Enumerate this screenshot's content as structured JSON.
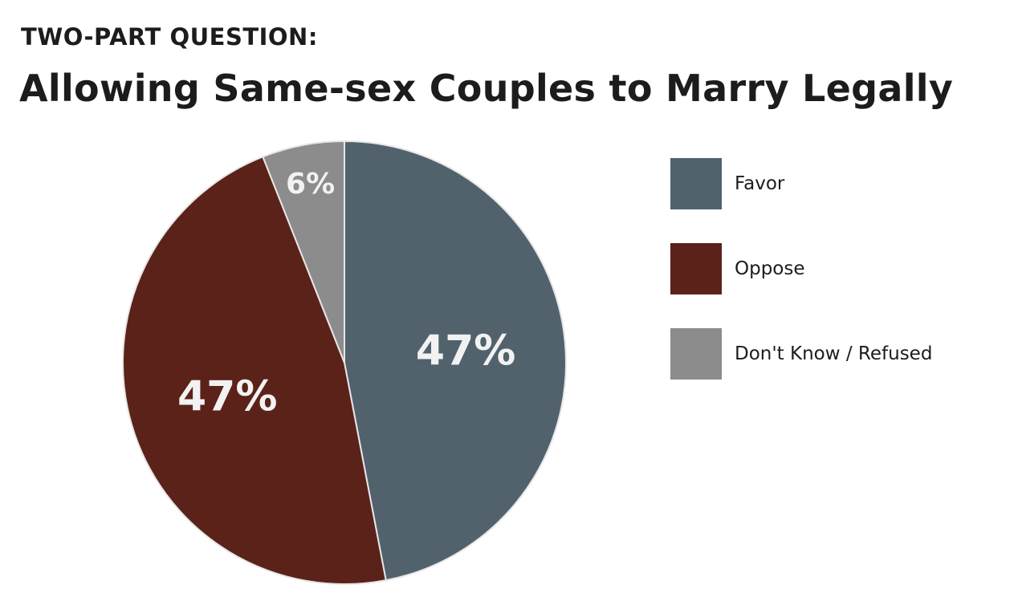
{
  "kicker": "TWO-PART QUESTION:",
  "title": "Allowing Same-sex Couples to Marry Legally",
  "chart_data": {
    "type": "pie",
    "title": "Allowing Same-sex Couples to Marry Legally",
    "subtitle": "TWO-PART QUESTION:",
    "legend_position": "right",
    "start_angle_deg": 0,
    "direction": "clockwise",
    "slices": [
      {
        "label": "Favor",
        "value": 47,
        "value_label": "47%",
        "color": "#51626d"
      },
      {
        "label": "Oppose",
        "value": 47,
        "value_label": "47%",
        "color": "#5b2219"
      },
      {
        "label": "Don't Know / Refused",
        "value": 6,
        "value_label": "6%",
        "color": "#8c8c8c"
      }
    ]
  }
}
